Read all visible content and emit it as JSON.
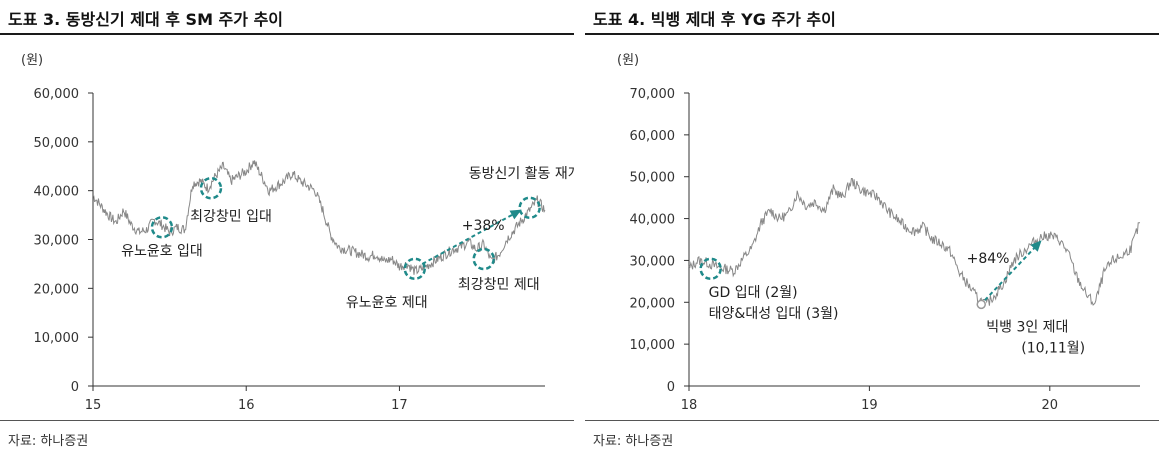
{
  "colors": {
    "price_line": "#888888",
    "accent": "#1f8a8a",
    "axis": "#333333",
    "hollow_marker": "#999999"
  },
  "panels": [
    {
      "title": "도표 3. 동방신기 제대 후 SM 주가 추이",
      "source": "자료: 하나증권"
    },
    {
      "title": "도표 4. 빅뱅 제대 후 YG 주가 추이",
      "source": "자료: 하나증권"
    }
  ],
  "chart_data": [
    {
      "type": "line",
      "title": "도표 3. 동방신기 제대 후 SM 주가 추이",
      "ylabel": "(원)",
      "ylim": [
        0,
        60000
      ],
      "yticks": [
        0,
        10000,
        20000,
        30000,
        40000,
        50000,
        60000
      ],
      "ytick_labels": [
        "0",
        "10,000",
        "20,000",
        "30,000",
        "40,000",
        "50,000",
        "60,000"
      ],
      "xlim": [
        15.0,
        17.95
      ],
      "xticks": [
        15,
        16,
        17
      ],
      "xtick_labels": [
        "15",
        "16",
        "17"
      ],
      "series": [
        {
          "name": "SM 주가",
          "x": [
            15.0,
            15.05,
            15.1,
            15.15,
            15.2,
            15.25,
            15.3,
            15.35,
            15.4,
            15.45,
            15.5,
            15.55,
            15.6,
            15.65,
            15.7,
            15.75,
            15.8,
            15.85,
            15.9,
            15.95,
            16.0,
            16.05,
            16.1,
            16.15,
            16.2,
            16.25,
            16.3,
            16.35,
            16.4,
            16.45,
            16.5,
            16.55,
            16.6,
            16.65,
            16.7,
            16.75,
            16.8,
            16.85,
            16.9,
            16.95,
            17.0,
            17.05,
            17.1,
            17.15,
            17.2,
            17.25,
            17.3,
            17.35,
            17.4,
            17.45,
            17.5,
            17.55,
            17.6,
            17.65,
            17.7,
            17.75,
            17.8,
            17.85,
            17.9,
            17.95
          ],
          "values": [
            39000,
            37000,
            35000,
            33500,
            36000,
            33000,
            31500,
            32000,
            34000,
            33000,
            31500,
            32500,
            32000,
            41500,
            42000,
            40500,
            43000,
            45000,
            42000,
            43000,
            44000,
            46000,
            43000,
            40000,
            41000,
            42000,
            43500,
            42000,
            41000,
            40000,
            36000,
            31000,
            28500,
            28000,
            27500,
            27000,
            26500,
            27000,
            25500,
            26000,
            24500,
            25000,
            23500,
            24000,
            25000,
            26000,
            27000,
            28000,
            28500,
            29500,
            28000,
            29000,
            25500,
            27000,
            30000,
            32000,
            34000,
            36000,
            38000,
            36000
          ]
        }
      ],
      "annotations": [
        {
          "label": "유노윤호 입대",
          "x": 15.45,
          "y": 32500
        },
        {
          "label": "최강창민 입대",
          "x": 15.77,
          "y": 40500
        },
        {
          "label": "유노윤호 제대",
          "x": 17.1,
          "y": 24000
        },
        {
          "label": "최강창민 제대",
          "x": 17.55,
          "y": 26000
        },
        {
          "label": "동방신기 활동 재개",
          "x": 17.85,
          "y": 36500
        }
      ],
      "arrow": {
        "label": "+38%",
        "from": [
          17.15,
          25000
        ],
        "to": [
          17.82,
          36500
        ]
      }
    },
    {
      "type": "line",
      "title": "도표 4. 빅뱅 제대 후 YG 주가 추이",
      "ylabel": "(원)",
      "ylim": [
        0,
        70000
      ],
      "yticks": [
        0,
        10000,
        20000,
        30000,
        40000,
        50000,
        60000,
        70000
      ],
      "ytick_labels": [
        "0",
        "10,000",
        "20,000",
        "30,000",
        "40,000",
        "50,000",
        "60,000",
        "70,000"
      ],
      "xlim": [
        18.0,
        20.5
      ],
      "xticks": [
        18,
        19,
        20
      ],
      "xtick_labels": [
        "18",
        "19",
        "20"
      ],
      "series": [
        {
          "name": "YG 주가",
          "x": [
            18.0,
            18.05,
            18.1,
            18.15,
            18.2,
            18.25,
            18.3,
            18.35,
            18.4,
            18.45,
            18.5,
            18.55,
            18.6,
            18.65,
            18.7,
            18.75,
            18.8,
            18.85,
            18.9,
            18.95,
            19.0,
            19.05,
            19.1,
            19.15,
            19.2,
            19.25,
            19.3,
            19.35,
            19.4,
            19.45,
            19.5,
            19.55,
            19.6,
            19.65,
            19.7,
            19.75,
            19.8,
            19.85,
            19.9,
            19.95,
            20.0,
            20.05,
            20.1,
            20.15,
            20.2,
            20.25,
            20.3,
            20.35,
            20.4,
            20.45,
            20.5
          ],
          "values": [
            28000,
            30000,
            29500,
            28500,
            28000,
            27500,
            30500,
            33000,
            39000,
            42000,
            40000,
            41000,
            46000,
            43000,
            44000,
            42000,
            47000,
            45000,
            49000,
            47000,
            46000,
            45000,
            42000,
            40000,
            38000,
            37000,
            38000,
            35000,
            34000,
            32000,
            27000,
            24000,
            21000,
            19500,
            22000,
            25000,
            30000,
            32000,
            34000,
            35500,
            36000,
            35000,
            32000,
            26000,
            22000,
            19500,
            27000,
            30000,
            31000,
            33000,
            39000
          ]
        }
      ],
      "annotations": [
        {
          "label": "GD 입대 (2월)",
          "x": 18.12,
          "y": 28000
        },
        {
          "label": "태양&대성 입대 (3월)",
          "x": 18.12,
          "y": 28000
        },
        {
          "label": "빅뱅 3인 제대",
          "x": 19.62,
          "y": 19500
        },
        {
          "label": "(10,11월)",
          "x": 19.62,
          "y": 19500
        }
      ],
      "arrow": {
        "label": "+84%",
        "from": [
          19.64,
          20500
        ],
        "to": [
          19.97,
          35500
        ]
      }
    }
  ]
}
